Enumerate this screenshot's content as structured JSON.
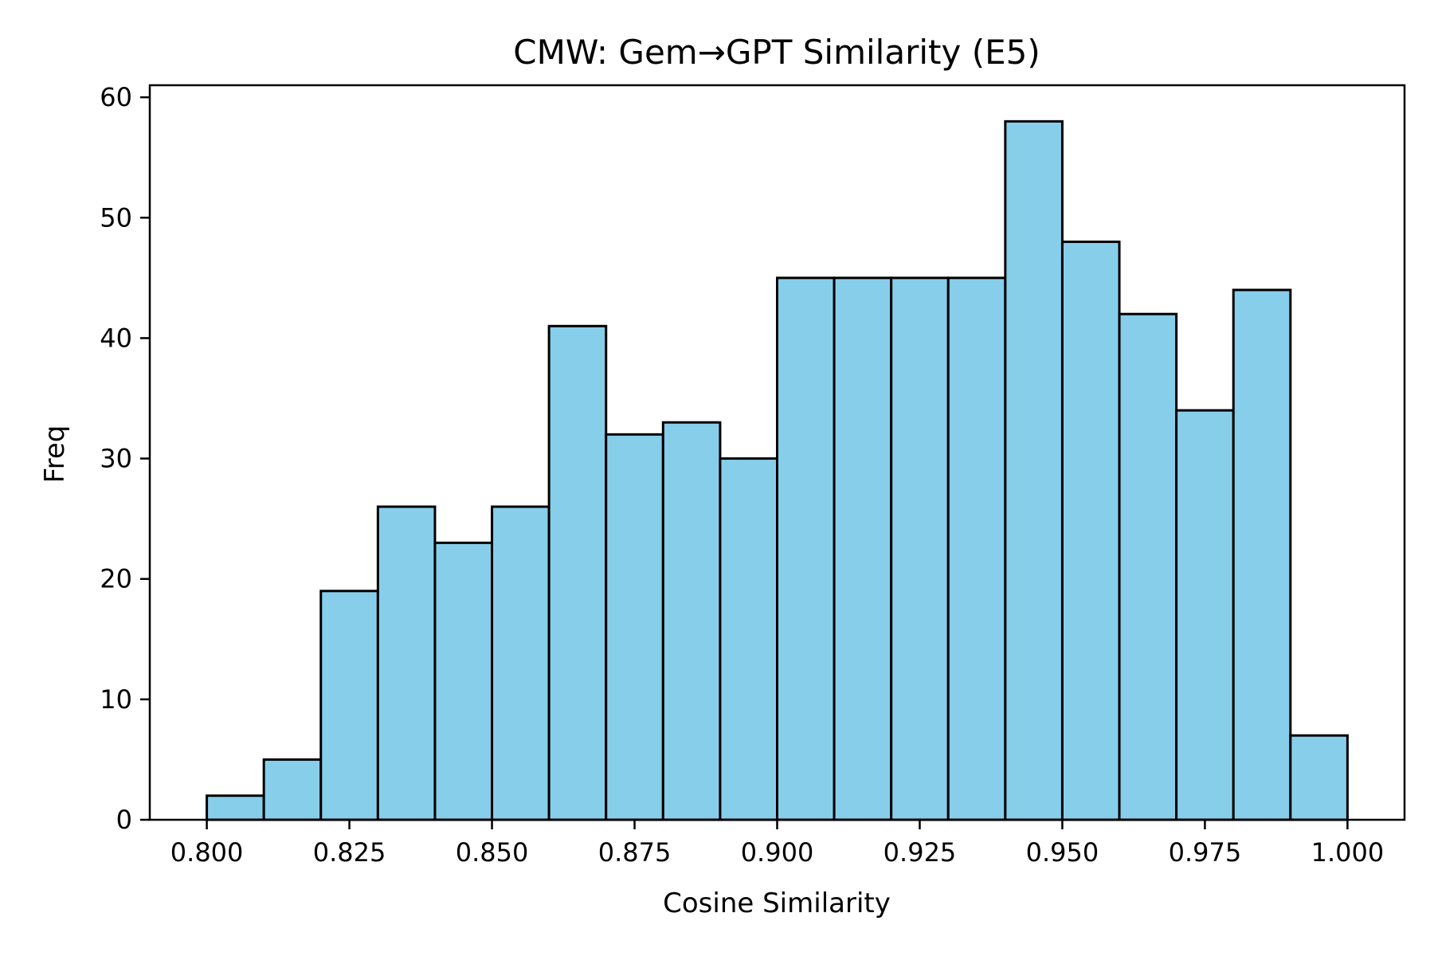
{
  "chart_data": {
    "type": "bar",
    "title": "CMW: Gem→GPT Similarity (E5)",
    "xlabel": "Cosine Similarity",
    "ylabel": "Freq",
    "bar_color": "#87CEEB",
    "edge_color": "#000000",
    "bin_width": 0.01,
    "bins": [
      {
        "start": 0.8,
        "value": 2
      },
      {
        "start": 0.81,
        "value": 5
      },
      {
        "start": 0.82,
        "value": 19
      },
      {
        "start": 0.83,
        "value": 26
      },
      {
        "start": 0.84,
        "value": 23
      },
      {
        "start": 0.85,
        "value": 26
      },
      {
        "start": 0.86,
        "value": 41
      },
      {
        "start": 0.87,
        "value": 32
      },
      {
        "start": 0.88,
        "value": 33
      },
      {
        "start": 0.89,
        "value": 30
      },
      {
        "start": 0.9,
        "value": 45
      },
      {
        "start": 0.91,
        "value": 45
      },
      {
        "start": 0.92,
        "value": 45
      },
      {
        "start": 0.93,
        "value": 45
      },
      {
        "start": 0.94,
        "value": 58
      },
      {
        "start": 0.95,
        "value": 48
      },
      {
        "start": 0.96,
        "value": 42
      },
      {
        "start": 0.97,
        "value": 34
      },
      {
        "start": 0.98,
        "value": 44
      },
      {
        "start": 0.99,
        "value": 7
      }
    ],
    "xlim": [
      0.79,
      1.01
    ],
    "ylim": [
      0,
      61
    ],
    "xticks": [
      "0.800",
      "0.825",
      "0.850",
      "0.875",
      "0.900",
      "0.925",
      "0.950",
      "0.975",
      "1.000"
    ],
    "xtick_values": [
      0.8,
      0.825,
      0.85,
      0.875,
      0.9,
      0.925,
      0.95,
      0.975,
      1.0
    ],
    "yticks": [
      "0",
      "10",
      "20",
      "30",
      "40",
      "50",
      "60"
    ],
    "ytick_values": [
      0,
      10,
      20,
      30,
      40,
      50,
      60
    ],
    "grid": false,
    "legend": "none"
  }
}
